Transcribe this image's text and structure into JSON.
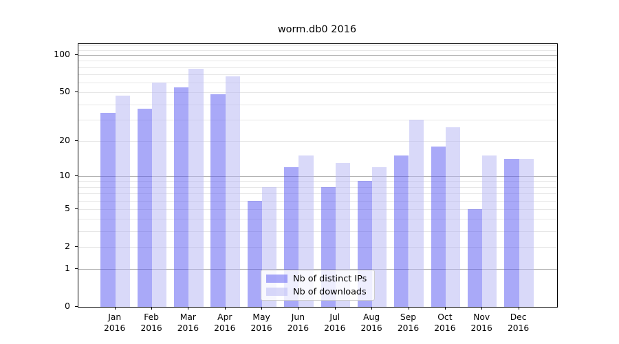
{
  "chart_data": {
    "type": "bar",
    "title": "worm.db0 2016",
    "categories": [
      "Jan",
      "Feb",
      "Mar",
      "Apr",
      "May",
      "Jun",
      "Jul",
      "Aug",
      "Sep",
      "Oct",
      "Nov",
      "Dec"
    ],
    "category_second_line": "2016",
    "series": [
      {
        "name": "Nb of distinct IPs",
        "color": "rgba(83,83,241,0.5)",
        "values": [
          34,
          37,
          55,
          48,
          6,
          12,
          8,
          9,
          15,
          18,
          5,
          14
        ]
      },
      {
        "name": "Nb of downloads",
        "color": "rgba(179,179,243,0.5)",
        "values": [
          47,
          60,
          78,
          67,
          8,
          15,
          13,
          12,
          30,
          26,
          15,
          14
        ]
      }
    ],
    "xlabel": "",
    "ylabel": "",
    "y_scale": "log1p",
    "ylim": [
      0,
      123
    ],
    "y_tick_labels": [
      100,
      50,
      20,
      10,
      5,
      2,
      1,
      0
    ],
    "y_major_gridlines": [
      1,
      10,
      100
    ],
    "y_minor_gridlines": [
      2,
      3,
      4,
      5,
      6,
      7,
      8,
      9,
      20,
      30,
      40,
      50,
      60,
      70,
      80,
      90,
      110,
      120
    ],
    "grid": "on",
    "legend_position": "bottom-center",
    "legend_entries": [
      "Nb of distinct IPs",
      "Nb of downloads"
    ]
  },
  "colors": {
    "bar_distinct_ips": "rgba(83,83,241,0.5)",
    "bar_downloads": "rgba(179,179,243,0.5)",
    "grid_major": "#b3b3b3",
    "grid_minor": "#e7e7e7",
    "axis": "#000000",
    "legend_border": "#cccccc"
  }
}
